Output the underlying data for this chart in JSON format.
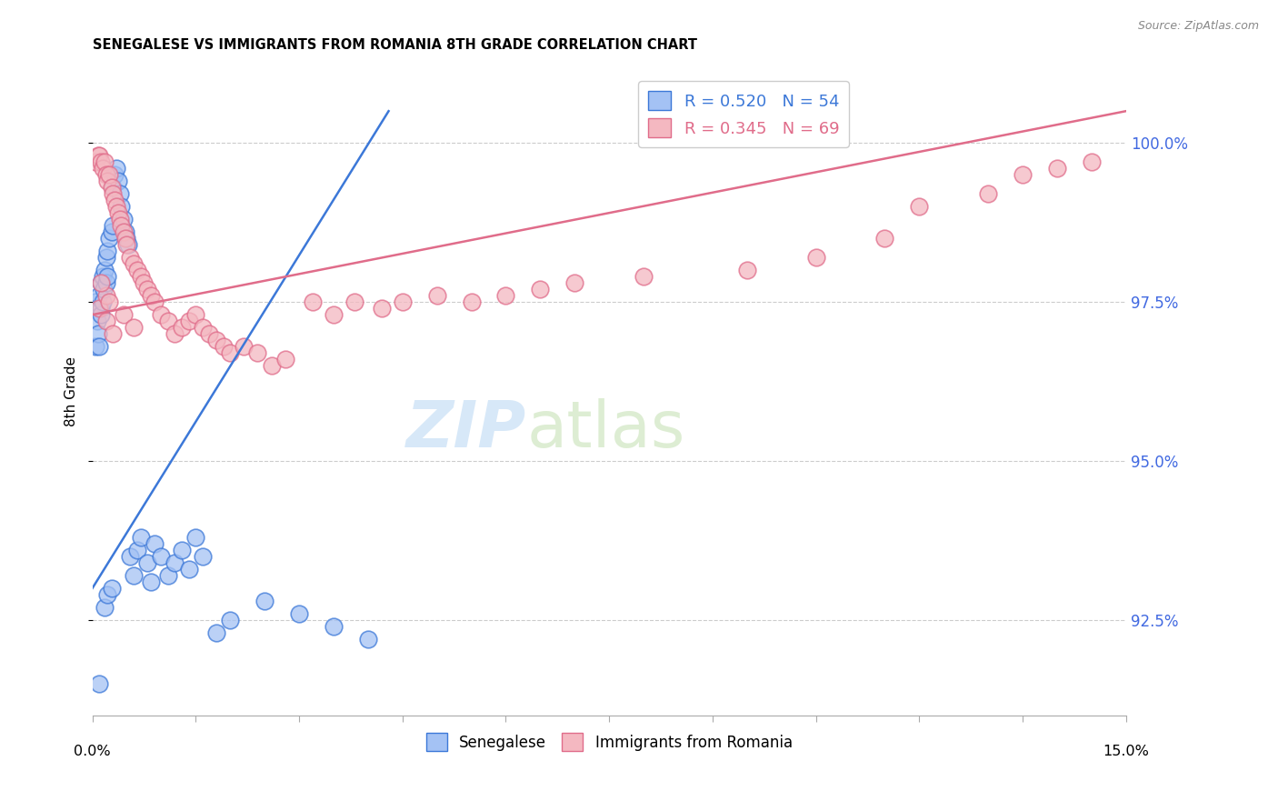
{
  "title": "SENEGALESE VS IMMIGRANTS FROM ROMANIA 8TH GRADE CORRELATION CHART",
  "source": "Source: ZipAtlas.com",
  "ylabel": "8th Grade",
  "ytick_values": [
    92.5,
    95.0,
    97.5,
    100.0
  ],
  "xmin": 0.0,
  "xmax": 15.0,
  "ymin": 91.0,
  "ymax": 101.2,
  "blue_color": "#a4c2f4",
  "pink_color": "#f4b8c1",
  "line_blue_color": "#3c78d8",
  "line_pink_color": "#e06c8a",
  "blue_edge_color": "#3c78d8",
  "pink_edge_color": "#e06c8a",
  "watermark_zip": "ZIP",
  "watermark_atlas": "atlas",
  "blue_scatter_x": [
    0.05,
    0.05,
    0.07,
    0.08,
    0.1,
    0.1,
    0.12,
    0.12,
    0.13,
    0.15,
    0.15,
    0.17,
    0.18,
    0.2,
    0.2,
    0.22,
    0.22,
    0.25,
    0.28,
    0.3,
    0.3,
    0.32,
    0.35,
    0.38,
    0.4,
    0.42,
    0.45,
    0.48,
    0.5,
    0.52,
    0.55,
    0.6,
    0.65,
    0.7,
    0.8,
    0.85,
    0.9,
    1.0,
    1.1,
    1.2,
    1.3,
    1.4,
    1.5,
    1.6,
    1.8,
    2.0,
    2.5,
    3.0,
    3.5,
    4.0,
    0.1,
    0.18,
    0.22,
    0.28
  ],
  "blue_scatter_y": [
    97.5,
    96.8,
    97.2,
    97.0,
    96.8,
    97.6,
    97.4,
    97.8,
    97.3,
    97.5,
    97.9,
    97.7,
    98.0,
    98.2,
    97.8,
    97.9,
    98.3,
    98.5,
    98.6,
    98.7,
    99.3,
    99.5,
    99.6,
    99.4,
    99.2,
    99.0,
    98.8,
    98.6,
    98.5,
    98.4,
    93.5,
    93.2,
    93.6,
    93.8,
    93.4,
    93.1,
    93.7,
    93.5,
    93.2,
    93.4,
    93.6,
    93.3,
    93.8,
    93.5,
    92.3,
    92.5,
    92.8,
    92.6,
    92.4,
    92.2,
    91.5,
    92.7,
    92.9,
    93.0
  ],
  "pink_scatter_x": [
    0.05,
    0.08,
    0.1,
    0.12,
    0.15,
    0.18,
    0.2,
    0.22,
    0.25,
    0.28,
    0.3,
    0.32,
    0.35,
    0.38,
    0.4,
    0.42,
    0.45,
    0.48,
    0.5,
    0.55,
    0.6,
    0.65,
    0.7,
    0.75,
    0.8,
    0.85,
    0.9,
    1.0,
    1.1,
    1.2,
    1.3,
    1.4,
    1.5,
    1.6,
    1.7,
    1.8,
    1.9,
    2.0,
    2.2,
    2.4,
    2.6,
    2.8,
    3.2,
    3.5,
    3.8,
    4.2,
    4.5,
    5.0,
    5.5,
    6.0,
    6.5,
    7.0,
    8.0,
    9.5,
    10.5,
    11.5,
    12.0,
    13.0,
    13.5,
    14.0,
    14.5,
    0.1,
    0.2,
    0.3,
    0.2,
    0.12,
    0.25,
    0.45,
    0.6
  ],
  "pink_scatter_y": [
    99.7,
    99.8,
    99.8,
    99.7,
    99.6,
    99.7,
    99.5,
    99.4,
    99.5,
    99.3,
    99.2,
    99.1,
    99.0,
    98.9,
    98.8,
    98.7,
    98.6,
    98.5,
    98.4,
    98.2,
    98.1,
    98.0,
    97.9,
    97.8,
    97.7,
    97.6,
    97.5,
    97.3,
    97.2,
    97.0,
    97.1,
    97.2,
    97.3,
    97.1,
    97.0,
    96.9,
    96.8,
    96.7,
    96.8,
    96.7,
    96.5,
    96.6,
    97.5,
    97.3,
    97.5,
    97.4,
    97.5,
    97.6,
    97.5,
    97.6,
    97.7,
    97.8,
    97.9,
    98.0,
    98.2,
    98.5,
    99.0,
    99.2,
    99.5,
    99.6,
    99.7,
    97.4,
    97.2,
    97.0,
    97.6,
    97.8,
    97.5,
    97.3,
    97.1
  ],
  "blue_line": [
    [
      0.0,
      4.3
    ],
    [
      93.0,
      100.5
    ]
  ],
  "pink_line": [
    [
      0.0,
      15.0
    ],
    [
      97.3,
      100.5
    ]
  ]
}
